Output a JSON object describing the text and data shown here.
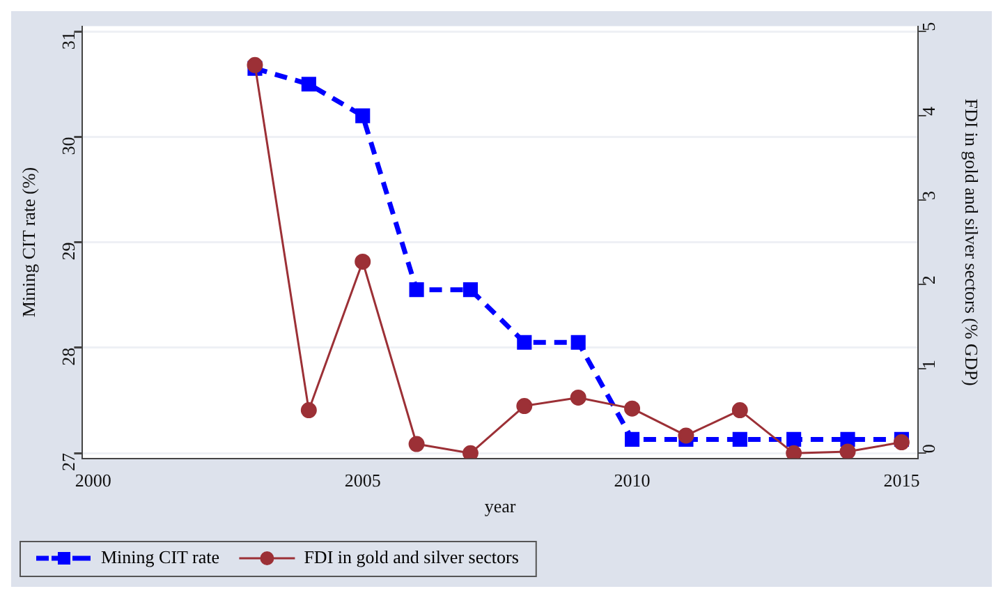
{
  "chart_data": {
    "type": "line",
    "xlabel": "year",
    "ylabel": "Mining CIT rate (%)",
    "y2label": "FDI in gold and silver sectors (% GDP)",
    "x": [
      2003,
      2004,
      2005,
      2006,
      2007,
      2008,
      2009,
      2010,
      2011,
      2012,
      2013,
      2014,
      2015
    ],
    "series": [
      {
        "name": "Mining CIT rate",
        "color": "#0000ff",
        "marker": "square",
        "line_style": "dashed",
        "values": [
          30.65,
          30.5,
          30.2,
          28.55,
          28.55,
          28.05,
          28.05,
          27.13,
          27.13,
          27.13,
          27.13,
          27.13,
          27.13
        ]
      },
      {
        "name": "FDI in gold and silver sectors",
        "color": "#9c3036",
        "marker": "circle",
        "line_style": "solid",
        "axis": "y2",
        "values": [
          4.6,
          0.51,
          2.27,
          0.11,
          0,
          0.56,
          0.66,
          0.53,
          0.21,
          0.51,
          0,
          0.02,
          0.13
        ]
      }
    ],
    "xlim": [
      1999.8,
      2015.3
    ],
    "xticks": [
      2000,
      2005,
      2010,
      2015
    ],
    "ylim": [
      26.95,
      31.05
    ],
    "yticks": [
      27,
      28,
      29,
      30,
      31
    ],
    "y2lim": [
      -0.06,
      5.06
    ],
    "y2ticks": [
      0,
      1,
      2,
      3,
      4,
      5
    ],
    "grid": "y",
    "legend": "bottom"
  }
}
